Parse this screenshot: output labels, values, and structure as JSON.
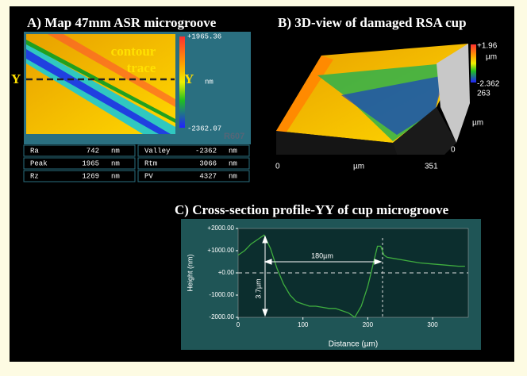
{
  "panel_a": {
    "title": "A) Map 47mm ASR microgroove",
    "annotation_line1": "contour",
    "annotation_line2": "trace",
    "y_left": "Y",
    "y_right": "Y",
    "scale_max": "+1965.36",
    "scale_unit": "nm",
    "scale_min": "-2362.07",
    "id": "R607",
    "stats": [
      [
        "Ra",
        "742",
        "nm",
        "Valley",
        "-2362",
        "nm"
      ],
      [
        "Peak",
        "1965",
        "nm",
        "Rtm",
        "3066",
        "nm"
      ],
      [
        "Rz",
        "1269",
        "nm",
        "PV",
        "4327",
        "nm"
      ]
    ]
  },
  "panel_b": {
    "title": "B) 3D-view of damaged RSA cup",
    "scale_max": "+1.96",
    "scale_unit": "µm",
    "scale_min": "-2.362",
    "scale_extra": "263",
    "z_unit": "µm",
    "z_min": "0",
    "x_min": "0",
    "x_unit": "µm",
    "x_max": "351"
  },
  "chart_data": {
    "type": "line",
    "title": "C) Cross-section profile-YY of cup microgroove",
    "x_label": "Distance (µm)",
    "y_label": "Height (nm)",
    "annotation_width": "180µm",
    "annotation_depth": "3.7µm",
    "x": [
      0,
      10,
      20,
      30,
      40,
      50,
      60,
      70,
      80,
      90,
      100,
      110,
      120,
      130,
      140,
      150,
      160,
      170,
      175,
      180,
      190,
      200,
      205,
      210,
      215,
      220,
      225,
      230,
      240,
      260,
      280,
      300,
      320,
      340,
      350
    ],
    "series": [
      {
        "color": "#3fae3f",
        "values": [
          800,
          1000,
          1300,
          1500,
          1700,
          1100,
          200,
          -500,
          -1000,
          -1300,
          -1400,
          -1500,
          -1500,
          -1550,
          -1600,
          -1600,
          -1700,
          -1800,
          -1900,
          -2000,
          -1500,
          -600,
          0,
          600,
          1200,
          1200,
          800,
          700,
          650,
          550,
          450,
          400,
          350,
          300,
          300
        ]
      }
    ],
    "xlim": [
      0,
      355
    ],
    "xticks": [
      0,
      100,
      200,
      300
    ],
    "ylim": [
      -2000,
      2000
    ],
    "yticks": [
      {
        "value": 2000,
        "label": "+2000.00"
      },
      {
        "value": 1000,
        "label": "+1000.00"
      },
      {
        "value": 0,
        "label": "+0.00"
      },
      {
        "value": -1000,
        "label": "-1000.00"
      },
      {
        "value": -2000,
        "label": "-2000.00"
      }
    ]
  }
}
